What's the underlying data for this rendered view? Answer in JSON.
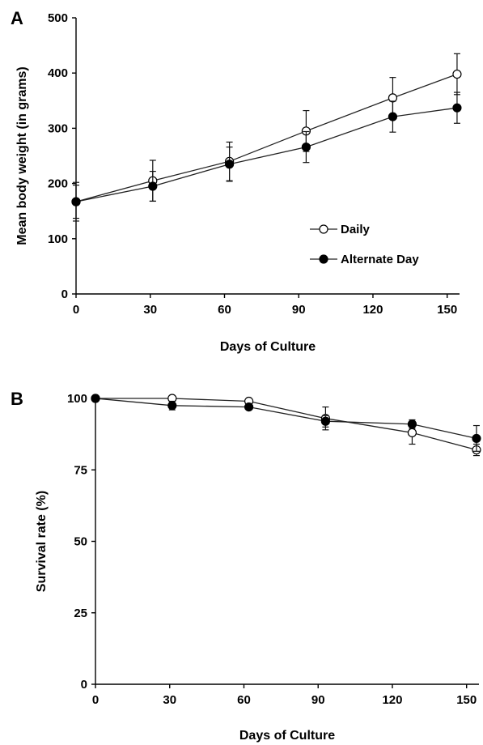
{
  "chart_data": [
    {
      "panel": "A",
      "type": "line",
      "xlabel": "Days of Culture",
      "ylabel": "Mean body weight (in grams)",
      "xlim": [
        0,
        155
      ],
      "ylim": [
        0,
        500
      ],
      "xticks": [
        "0",
        "30",
        "60",
        "90",
        "120",
        "150"
      ],
      "yticks": [
        "0",
        "100",
        "200",
        "300",
        "400",
        "500"
      ],
      "grid": false,
      "legend_position": "bottom-right",
      "series": [
        {
          "name": "Daily",
          "marker": "open-circle",
          "x": [
            0,
            31,
            62,
            93,
            128,
            154
          ],
          "y": [
            167,
            205,
            240,
            295,
            355,
            398
          ],
          "err": [
            35,
            37,
            35,
            37,
            37,
            37
          ]
        },
        {
          "name": "Alternate Day",
          "marker": "filled-circle",
          "x": [
            0,
            31,
            62,
            93,
            128,
            154
          ],
          "y": [
            167,
            195,
            235,
            266,
            321,
            337
          ],
          "err": [
            30,
            27,
            31,
            28,
            28,
            28
          ]
        }
      ]
    },
    {
      "panel": "B",
      "type": "line",
      "xlabel": "Days of Culture",
      "ylabel": "Survival rate (%)",
      "xlim": [
        0,
        155
      ],
      "ylim": [
        0,
        100
      ],
      "xticks": [
        "0",
        "30",
        "60",
        "90",
        "120",
        "150"
      ],
      "yticks": [
        "0",
        "25",
        "50",
        "75",
        "100"
      ],
      "grid": false,
      "series": [
        {
          "name": "Daily",
          "marker": "open-circle",
          "x": [
            0,
            31,
            62,
            93,
            128,
            154
          ],
          "y": [
            100,
            100,
            99,
            93,
            88,
            82
          ],
          "err": [
            0,
            0,
            0,
            4,
            4,
            2
          ]
        },
        {
          "name": "Alternate Day",
          "marker": "filled-circle",
          "x": [
            0,
            31,
            62,
            93,
            128,
            154
          ],
          "y": [
            100,
            97.5,
            97,
            92,
            91,
            86
          ],
          "err": [
            0,
            1.5,
            0.5,
            2,
            1.5,
            4.5
          ]
        }
      ]
    }
  ]
}
